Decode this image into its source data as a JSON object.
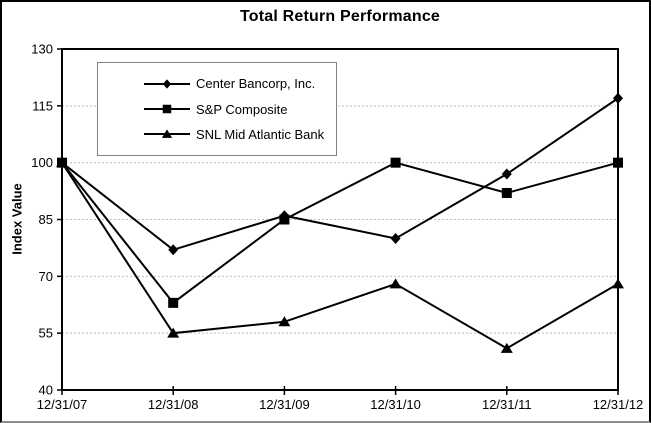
{
  "chart_data": {
    "type": "line",
    "title": "Total Return Performance",
    "xlabel": "",
    "ylabel": "Index Value",
    "ylim": [
      40,
      130
    ],
    "yticks": [
      40,
      55,
      70,
      85,
      100,
      115,
      130
    ],
    "categories": [
      "12/31/07",
      "12/31/08",
      "12/31/09",
      "12/31/10",
      "12/31/11",
      "12/31/12"
    ],
    "series": [
      {
        "name": "Center Bancorp, Inc.",
        "marker": "diamond",
        "color": "#000000",
        "values": [
          100,
          77,
          86,
          80,
          97,
          117
        ]
      },
      {
        "name": "S&P Composite",
        "marker": "square",
        "color": "#000000",
        "values": [
          100,
          63,
          85,
          100,
          92,
          100
        ]
      },
      {
        "name": "SNL Mid Atlantic Bank",
        "marker": "triangle",
        "color": "#000000",
        "values": [
          100,
          55,
          58,
          68,
          51,
          68
        ]
      }
    ],
    "grid": "horizontal dotted lines at each y tick",
    "legend_position": "inside top-left"
  },
  "styles": {
    "line_color": "#000000",
    "grid_color": "#bfbfbf",
    "axis_color": "#000000",
    "legend_border_color": "#808080",
    "background_color": "#ffffff"
  }
}
